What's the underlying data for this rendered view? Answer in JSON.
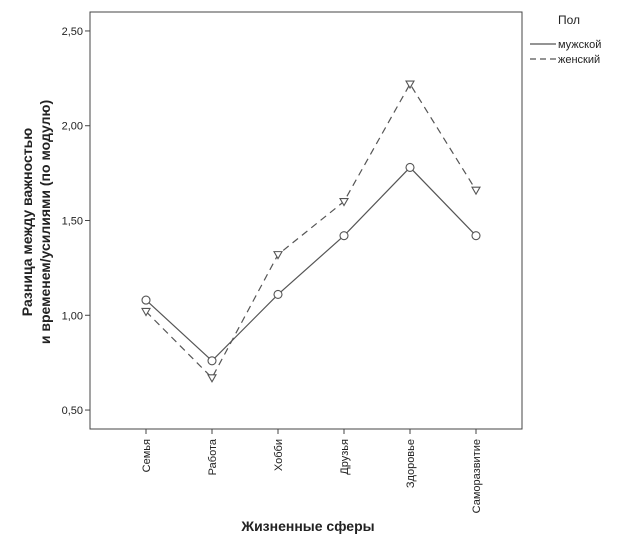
{
  "chart_data": {
    "type": "line",
    "title": "",
    "xlabel": "Жизненные сферы",
    "ylabel_lines": [
      "Разница между важностью",
      "и временем/усилиями (по модулю)"
    ],
    "categories": [
      "Семья",
      "Работа",
      "Хобби",
      "Друзья",
      "Здоровье",
      "Саморазвитие"
    ],
    "yticks": [
      "0,50",
      "1,00",
      "1,50",
      "2,00",
      "2,50"
    ],
    "ytick_values": [
      0.5,
      1.0,
      1.5,
      2.0,
      2.5
    ],
    "ylim": [
      0.4,
      2.6
    ],
    "grid": false,
    "legend": {
      "title": "Пол",
      "placement": "top-right"
    },
    "series": [
      {
        "name": "мужской",
        "values": [
          1.08,
          0.76,
          1.11,
          1.42,
          1.78,
          1.42
        ],
        "line_style": "solid",
        "marker": "circle"
      },
      {
        "name": "женский",
        "values": [
          1.02,
          0.67,
          1.32,
          1.6,
          2.22,
          1.66
        ],
        "line_style": "dashed",
        "marker": "triangle-down"
      }
    ],
    "colors": {
      "line": "#555555",
      "axis": "#444444"
    }
  }
}
